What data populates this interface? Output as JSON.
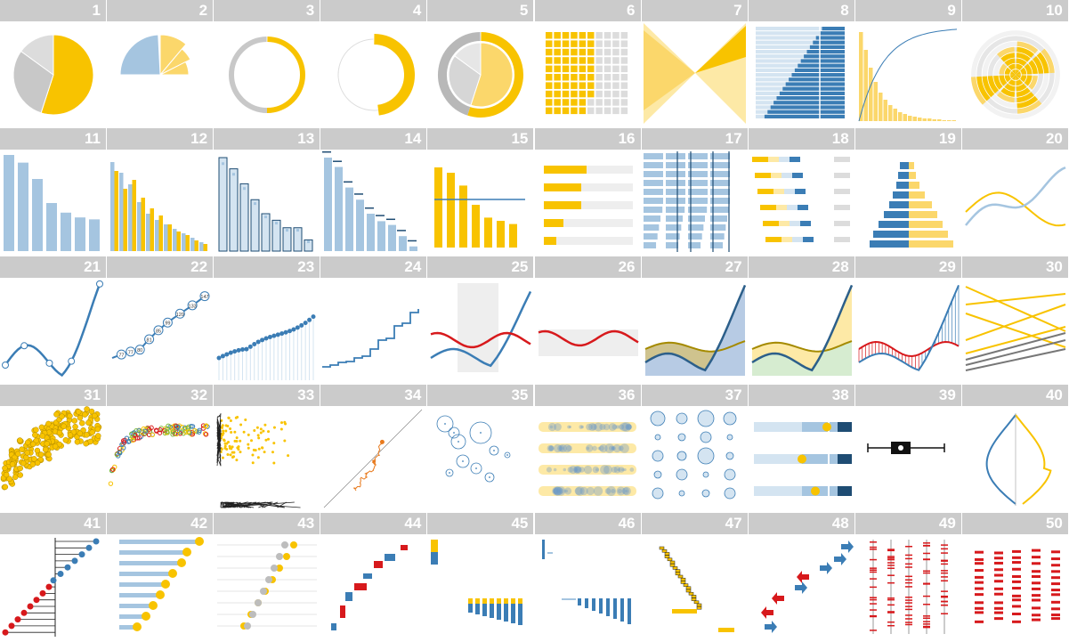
{
  "colors": {
    "gold": "#f8c300",
    "light_gold": "#fbd76b",
    "pale_gold": "#fde9a6",
    "blue": "#3b7db5",
    "light_blue": "#a5c5e0",
    "pale_blue": "#d4e4f1",
    "navy": "#1e4c73",
    "gray": "#c8c8c8",
    "light_gray": "#eeeeee",
    "red": "#d7191c",
    "green": "#d6ecd0",
    "olive": "#b3a66a"
  },
  "chart_data": [
    {
      "id": "1",
      "type": "pie",
      "values": [
        55,
        30,
        15
      ]
    },
    {
      "id": "2",
      "type": "pie",
      "values": [
        25,
        30,
        22,
        23
      ]
    },
    {
      "id": "3",
      "type": "donut",
      "values": [
        50,
        50
      ]
    },
    {
      "id": "4",
      "type": "donut",
      "values": [
        48,
        52
      ]
    },
    {
      "id": "5",
      "type": "pie",
      "values": [
        55,
        30,
        15
      ]
    },
    {
      "id": "6",
      "type": "waffle",
      "values": [
        58,
        42
      ]
    },
    {
      "id": "7",
      "type": "area"
    },
    {
      "id": "8",
      "type": "bar"
    },
    {
      "id": "9",
      "type": "bar",
      "values": [
        100,
        80,
        60,
        44,
        32,
        24,
        18,
        14,
        10,
        8,
        6,
        5,
        4,
        3,
        3,
        2,
        2,
        1,
        1,
        1
      ]
    },
    {
      "id": "10",
      "type": "radial"
    },
    {
      "id": "11",
      "type": "bar",
      "values": [
        100,
        92,
        75,
        50,
        40,
        35,
        33
      ]
    },
    {
      "id": "12",
      "type": "bar"
    },
    {
      "id": "13",
      "type": "bar",
      "values": [
        100,
        88,
        72,
        55,
        40,
        33,
        25,
        25,
        12
      ]
    },
    {
      "id": "14",
      "type": "bar",
      "values": [
        100,
        90,
        68,
        55,
        40,
        32,
        28,
        16,
        5
      ]
    },
    {
      "id": "15",
      "type": "bar",
      "values": [
        75,
        70,
        58,
        40,
        28,
        25,
        22
      ]
    },
    {
      "id": "16",
      "type": "bar",
      "values": [
        48,
        42,
        42,
        22,
        14
      ]
    },
    {
      "id": "17",
      "type": "bar"
    },
    {
      "id": "18",
      "type": "bar"
    },
    {
      "id": "19",
      "type": "bar"
    },
    {
      "id": "20",
      "type": "line"
    },
    {
      "id": "21",
      "type": "line"
    },
    {
      "id": "22",
      "type": "line",
      "point_labels": [
        "77",
        "77",
        "80",
        "81",
        "85",
        "99",
        "120",
        "133",
        "147"
      ]
    },
    {
      "id": "23",
      "type": "line"
    },
    {
      "id": "24",
      "type": "line"
    },
    {
      "id": "25",
      "type": "line"
    },
    {
      "id": "26",
      "type": "line"
    },
    {
      "id": "27",
      "type": "area"
    },
    {
      "id": "28",
      "type": "area"
    },
    {
      "id": "29",
      "type": "line"
    },
    {
      "id": "30",
      "type": "line"
    },
    {
      "id": "31",
      "type": "scatter"
    },
    {
      "id": "32",
      "type": "scatter"
    },
    {
      "id": "33",
      "type": "scatter"
    },
    {
      "id": "34",
      "type": "scatter"
    },
    {
      "id": "35",
      "type": "scatter"
    },
    {
      "id": "36",
      "type": "scatter"
    },
    {
      "id": "37",
      "type": "scatter"
    },
    {
      "id": "38",
      "type": "bar"
    },
    {
      "id": "39",
      "type": "box"
    },
    {
      "id": "40",
      "type": "line"
    },
    {
      "id": "41",
      "type": "dot"
    },
    {
      "id": "42",
      "type": "bar"
    },
    {
      "id": "43",
      "type": "dot"
    },
    {
      "id": "44",
      "type": "bar"
    },
    {
      "id": "45",
      "type": "bar"
    },
    {
      "id": "46",
      "type": "bar"
    },
    {
      "id": "47",
      "type": "bar"
    },
    {
      "id": "48",
      "type": "bar"
    },
    {
      "id": "49",
      "type": "bar"
    },
    {
      "id": "50",
      "type": "bar"
    }
  ]
}
